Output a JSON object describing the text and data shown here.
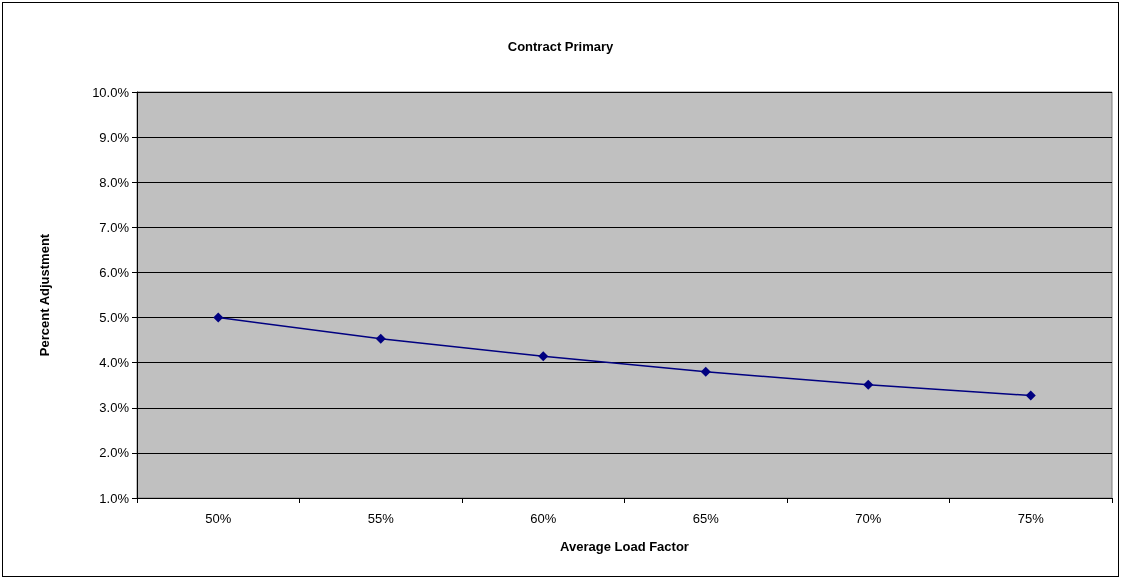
{
  "chart_data": {
    "type": "line",
    "title": "Contract Primary",
    "xlabel": "Average Load Factor",
    "ylabel": "Percent Adjustment",
    "categories": [
      "50%",
      "55%",
      "60%",
      "65%",
      "70%",
      "75%"
    ],
    "series": [
      {
        "color": "#000080",
        "values": [
          5.0,
          4.53,
          4.14,
          3.8,
          3.51,
          3.27
        ]
      }
    ],
    "ylim": [
      1,
      10
    ],
    "yticks": [
      {
        "value": 1,
        "label": "1.0%"
      },
      {
        "value": 2,
        "label": "2.0%"
      },
      {
        "value": 3,
        "label": "3.0%"
      },
      {
        "value": 4,
        "label": "4.0%"
      },
      {
        "value": 5,
        "label": "5.0%"
      },
      {
        "value": 6,
        "label": "6.0%"
      },
      {
        "value": 7,
        "label": "7.0%"
      },
      {
        "value": 8,
        "label": "8.0%"
      },
      {
        "value": 9,
        "label": "9.0%"
      },
      {
        "value": 10,
        "label": "10.0%"
      }
    ],
    "grid": "y",
    "marker": "diamond",
    "line_style": "solid"
  }
}
